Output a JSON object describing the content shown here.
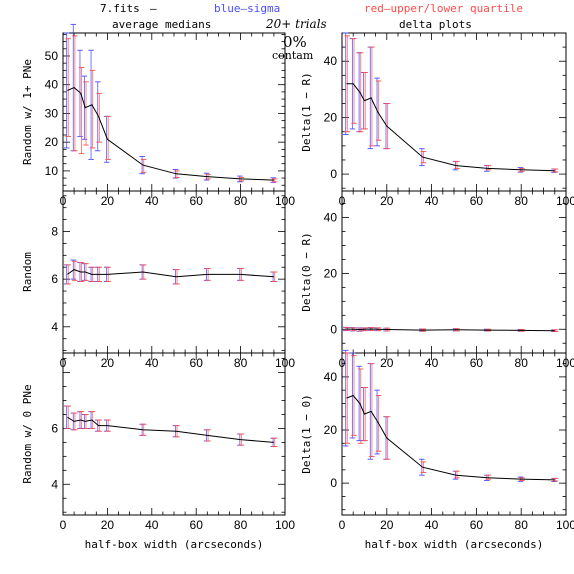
{
  "header": {
    "file": "7.fits",
    "dash": "—",
    "blue_label": "blue—sigma",
    "red_label": "red—upper/lower quartile",
    "blue_color": "#4c4cff",
    "red_color": "#ff4c4c",
    "left_title": "average medians",
    "right_title": "delta plots",
    "trials": "20+ trials",
    "contam_pct": "0%",
    "contam": "contam"
  },
  "chart_data": [
    {
      "type": "line",
      "panel": "left-top",
      "ylabel": "Random w/ 1+ PNe",
      "xlabel": "",
      "xlim": [
        0,
        100
      ],
      "ylim": [
        3,
        58
      ],
      "yticks": [
        10,
        20,
        30,
        40,
        50
      ],
      "x": [
        2,
        5,
        8,
        10,
        13,
        16,
        20,
        36,
        51,
        65,
        80,
        95
      ],
      "y": [
        38,
        39,
        37,
        32,
        33,
        29,
        21,
        12,
        9,
        8,
        7.2,
        6.8
      ],
      "sigma": [
        20,
        22,
        15,
        11,
        19,
        12,
        8,
        3,
        1.5,
        1.2,
        1,
        0.8
      ],
      "q_low": [
        22,
        17,
        16,
        19,
        18,
        20,
        14,
        9.5,
        7.7,
        7.2,
        6.5,
        6.2
      ],
      "q_up": [
        56,
        57,
        46,
        41,
        45,
        37,
        29,
        14,
        10,
        8.8,
        7.7,
        7.2
      ]
    },
    {
      "type": "line",
      "panel": "left-middle",
      "ylabel": "Random",
      "xlabel": "",
      "xlim": [
        0,
        100
      ],
      "ylim": [
        2.9,
        9.7
      ],
      "yticks": [
        4,
        6,
        8
      ],
      "x": [
        2,
        5,
        8,
        10,
        13,
        16,
        20,
        36,
        51,
        65,
        80,
        95
      ],
      "y": [
        6.2,
        6.4,
        6.3,
        6.3,
        6.2,
        6.2,
        6.2,
        6.3,
        6.1,
        6.2,
        6.2,
        6.1
      ],
      "sigma": [
        0.4,
        0.4,
        0.4,
        0.35,
        0.3,
        0.3,
        0.3,
        0.3,
        0.3,
        0.25,
        0.25,
        0.2
      ],
      "q_low": [
        5.8,
        5.95,
        5.9,
        5.95,
        5.9,
        5.9,
        5.9,
        6.0,
        5.8,
        5.95,
        5.95,
        5.9
      ],
      "q_up": [
        6.6,
        6.75,
        6.7,
        6.65,
        6.5,
        6.5,
        6.5,
        6.6,
        6.4,
        6.45,
        6.45,
        6.3
      ]
    },
    {
      "type": "line",
      "panel": "left-bottom",
      "ylabel": "Random w/ 0 PNe",
      "xlabel": "half-box width (arcseconds)",
      "xlim": [
        0,
        100
      ],
      "ylim": [
        2.9,
        8.7
      ],
      "yticks": [
        4,
        6
      ],
      "xticks": [
        0,
        20,
        40,
        60,
        80,
        100
      ],
      "x": [
        2,
        5,
        8,
        10,
        13,
        16,
        20,
        36,
        51,
        65,
        80,
        95
      ],
      "y": [
        6.4,
        6.25,
        6.3,
        6.25,
        6.3,
        6.1,
        6.1,
        5.95,
        5.9,
        5.75,
        5.6,
        5.5
      ],
      "sigma": [
        0.4,
        0.3,
        0.3,
        0.25,
        0.3,
        0.2,
        0.2,
        0.2,
        0.2,
        0.2,
        0.2,
        0.15
      ],
      "q_low": [
        6.0,
        5.95,
        6.0,
        6.0,
        6.0,
        5.9,
        5.9,
        5.75,
        5.7,
        5.55,
        5.4,
        5.35
      ],
      "q_up": [
        6.8,
        6.55,
        6.6,
        6.5,
        6.6,
        6.3,
        6.3,
        6.15,
        6.1,
        5.95,
        5.8,
        5.65
      ]
    },
    {
      "type": "line",
      "panel": "right-top",
      "ylabel": "Delta(1 − R)",
      "xlabel": "",
      "xlim": [
        0,
        100
      ],
      "ylim": [
        -6,
        50
      ],
      "yticks": [
        0,
        20,
        40
      ],
      "x": [
        2,
        5,
        8,
        10,
        13,
        16,
        20,
        36,
        51,
        65,
        80,
        95
      ],
      "y": [
        32,
        32,
        29,
        26,
        27,
        22,
        17,
        6,
        3,
        2,
        1.5,
        1.2
      ],
      "sigma": [
        18,
        16,
        14,
        10,
        18,
        12,
        8,
        3,
        1.5,
        1,
        0.8,
        0.6
      ],
      "q_low": [
        15,
        18,
        15,
        16,
        10,
        12,
        9,
        4,
        2,
        1.5,
        1,
        0.8
      ],
      "q_up": [
        49,
        48,
        43,
        36,
        45,
        33,
        25,
        8,
        4.5,
        3,
        2,
        1.8
      ]
    },
    {
      "type": "line",
      "panel": "right-middle",
      "ylabel": "Delta(0 − R)",
      "xlabel": "",
      "xlim": [
        0,
        100
      ],
      "ylim": [
        -8.5,
        49.5
      ],
      "yticks": [
        0,
        20,
        40
      ],
      "x": [
        2,
        5,
        8,
        10,
        13,
        16,
        20,
        36,
        51,
        65,
        80,
        95
      ],
      "y": [
        0.1,
        0,
        -0.1,
        0,
        0.1,
        0,
        -0.1,
        -0.3,
        -0.2,
        -0.3,
        -0.4,
        -0.5
      ],
      "sigma": [
        0.6,
        0.6,
        0.6,
        0.5,
        0.5,
        0.5,
        0.5,
        0.4,
        0.4,
        0.3,
        0.3,
        0.3
      ],
      "q_low": [
        -0.4,
        -0.5,
        -0.6,
        -0.5,
        -0.4,
        -0.5,
        -0.6,
        -0.7,
        -0.6,
        -0.6,
        -0.7,
        -0.8
      ],
      "q_up": [
        0.6,
        0.5,
        0.4,
        0.5,
        0.6,
        0.5,
        0.4,
        0.1,
        0.2,
        0.0,
        -0.1,
        -0.2
      ]
    },
    {
      "type": "line",
      "panel": "right-bottom",
      "ylabel": "Delta(1 − 0)",
      "xlabel": "half-box width (arcseconds)",
      "xlim": [
        0,
        100
      ],
      "ylim": [
        -12,
        49
      ],
      "yticks": [
        0,
        20,
        40
      ],
      "xticks": [
        0,
        20,
        40,
        60,
        80,
        100
      ],
      "x": [
        2,
        5,
        8,
        10,
        13,
        16,
        20,
        36,
        51,
        65,
        80,
        95
      ],
      "y": [
        32,
        33,
        30,
        26,
        27,
        23,
        17,
        6,
        3,
        2,
        1.5,
        1.2
      ],
      "sigma": [
        18,
        16,
        14,
        10,
        18,
        12,
        8,
        3,
        1.5,
        1,
        0.8,
        0.6
      ],
      "q_low": [
        15,
        18,
        15,
        16,
        10,
        12,
        9,
        4,
        2,
        1.5,
        1,
        0.8
      ],
      "q_up": [
        49,
        48,
        43,
        36,
        45,
        33,
        25,
        8,
        4.5,
        3,
        2,
        1.8
      ]
    }
  ]
}
